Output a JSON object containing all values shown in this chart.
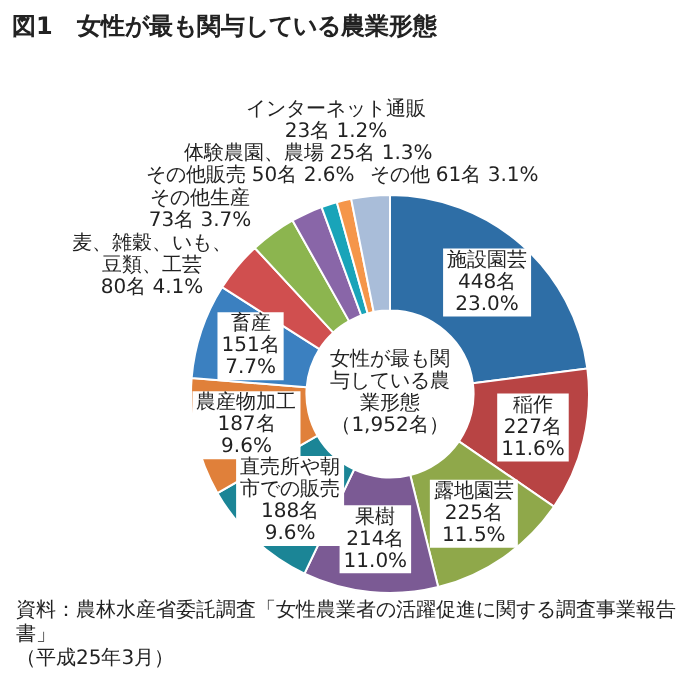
{
  "chart_data": {
    "type": "donut",
    "title": "図1　女性が最も関与している農業形態",
    "categories": [
      "施設園芸",
      "稲作",
      "露地園芸",
      "果樹",
      "直売所や朝市での販売",
      "農産物加工",
      "畜産",
      "麦、雑穀、いも、豆類、工芸",
      "その他生産",
      "その他販売",
      "体験農園、農場",
      "インターネット通販",
      "その他"
    ],
    "values": [
      448,
      227,
      225,
      214,
      188,
      187,
      151,
      80,
      73,
      50,
      25,
      23,
      61
    ],
    "colors": [
      "#2e6ea6",
      "#b84444",
      "#8fa84a",
      "#7b5a94",
      "#1b8596",
      "#e0803a",
      "#3b80c0",
      "#d04f4f",
      "#8cb54f",
      "#8966a8",
      "#19a4b9",
      "#f5964a",
      "#a9bdd9"
    ],
    "value_labels": [
      "448名 23.0%",
      "227名 11.6%",
      "225名 11.5%",
      "214名 11.0%",
      "188名 9.6%",
      "187名 9.6%",
      "151名 7.7%",
      "80名 4.1%",
      "73名 3.7%",
      "50名 2.6%",
      "25名 1.3%",
      "23名 1.2%",
      "61名 3.1%"
    ],
    "annotations": [
      "女性が最も関与している農業形態",
      "（1,952名）",
      "資料：農林水産省委託調査「女性農業者の活躍促進に関する調査事業報告書」",
      "（平成25年3月）"
    ]
  }
}
